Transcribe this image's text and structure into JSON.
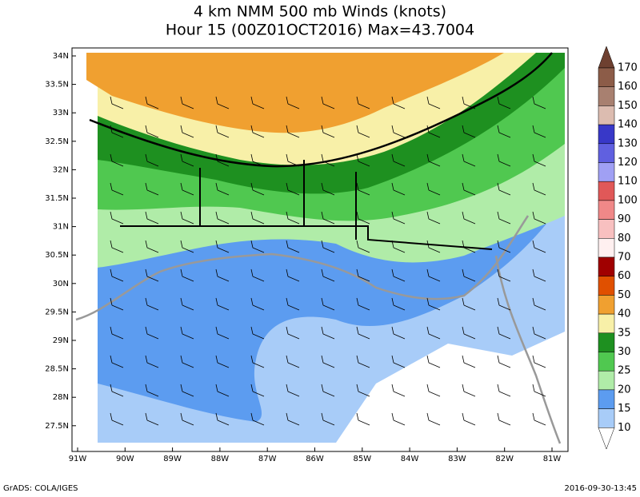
{
  "title": [
    "4 km NMM 500 mb Winds (knots)",
    "Hour 15 (00Z01OCT2016) Max=43.7004"
  ],
  "lat_labels": [
    "34N",
    "33.5N",
    "33N",
    "32.5N",
    "32N",
    "31.5N",
    "31N",
    "30.5N",
    "30N",
    "29.5N",
    "29N",
    "28.5N",
    "28N",
    "27.5N"
  ],
  "lon_labels": [
    "91W",
    "90W",
    "89W",
    "88W",
    "87W",
    "86W",
    "85W",
    "84W",
    "83W",
    "82W",
    "81W"
  ],
  "colorbar": {
    "levels": [
      "170",
      "160",
      "150",
      "140",
      "130",
      "120",
      "110",
      "100",
      "90",
      "80",
      "70",
      "60",
      "50",
      "40",
      "35",
      "30",
      "25",
      "20",
      "15",
      "10"
    ],
    "colors": [
      "#6e4030",
      "#8c5c48",
      "#a88070",
      "#dcbcb0",
      "#3838c8",
      "#6060e0",
      "#a0a0f4",
      "#e05858",
      "#f08888",
      "#f8c0c0",
      "#fff0f0",
      "#a00000",
      "#e05000",
      "#f0a030",
      "#f8f0a8",
      "#1e9020",
      "#50c850",
      "#b0eca8",
      "#5c9cf0",
      "#a8ccf8",
      "#ffffff"
    ]
  },
  "footer": {
    "left": "GrADS: COLA/IGES",
    "right": "2016-09-30-13:45"
  }
}
